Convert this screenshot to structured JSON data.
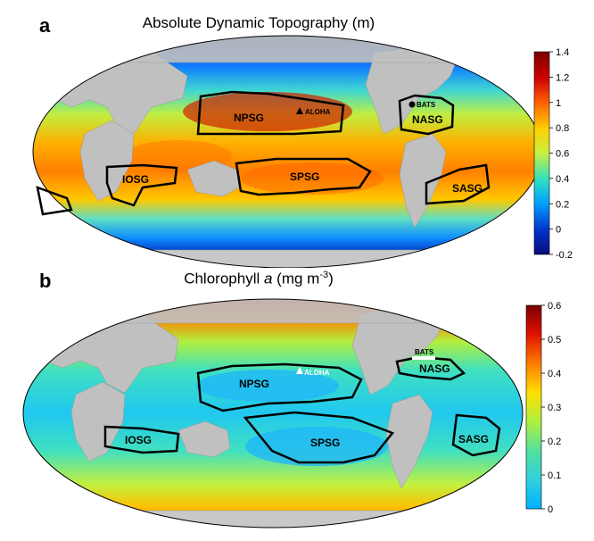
{
  "panels": [
    {
      "letter": "a",
      "title": "Absolute Dynamic Topography (m)",
      "colorbar": {
        "ticks": [
          "1.4",
          "1.2",
          "1",
          "0.8",
          "0.6",
          "0.4",
          "0.2",
          "0",
          "-0.2"
        ],
        "range": [
          -0.2,
          1.4
        ],
        "colors": [
          "#0a0a7a",
          "#0033cc",
          "#00a0ff",
          "#30e0c0",
          "#c8f040",
          "#ffd000",
          "#ff6000",
          "#d00000",
          "#7a0000"
        ]
      },
      "gyres": [
        "NPSG",
        "SPSG",
        "IOSG",
        "NASG",
        "SASG"
      ],
      "sites": [
        "ALOHA",
        "BATS"
      ]
    },
    {
      "letter": "b",
      "title_prefix": "Chlorophyll ",
      "title_italic": "a",
      "title_units": " (mg m",
      "title_sup": "-3",
      "title_suffix": ")",
      "colorbar": {
        "ticks": [
          "0.6",
          "0.5",
          "0.4",
          "0.3",
          "0.2",
          "0.1",
          "0"
        ],
        "range": [
          0,
          0.6
        ],
        "colors": [
          "#00b0ff",
          "#30d0e0",
          "#50e0a0",
          "#b0f040",
          "#ffe000",
          "#ff8000",
          "#e01000",
          "#7a0000"
        ]
      },
      "gyres": [
        "NPSG",
        "SPSG",
        "IOSG",
        "NASG",
        "SASG"
      ],
      "sites": [
        "ALOHA",
        "BATS"
      ]
    }
  ],
  "legend": {
    "land_color": "#c0c0c0",
    "gyre_outline_color": "#000000"
  }
}
